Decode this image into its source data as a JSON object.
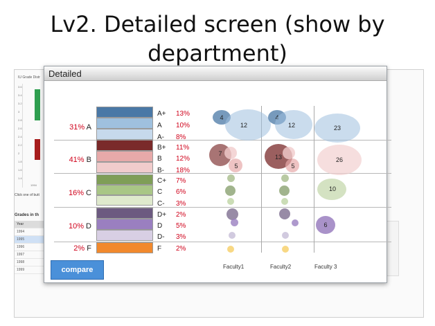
{
  "slide": {
    "title_line1": "Lv2. Detailed screen (show by",
    "title_line2": "department)"
  },
  "background": {
    "chart_title": "IU Grade Distr",
    "y_ticks": [
      "3.6",
      "3.4",
      "3.2",
      "3",
      "2.8",
      "2.6",
      "2.4",
      "2.2",
      "2",
      "1.8",
      "1.6",
      "1.4"
    ],
    "x_tick": "1994",
    "click_hint": "Click one of butt",
    "grades_title": "Grades in th",
    "table_header": "Year",
    "table_rows": [
      "1994",
      "1995",
      "1996",
      "1997",
      "1998",
      "1999"
    ]
  },
  "dialog": {
    "title": "Detailed",
    "compare_label": "compare",
    "groups": [
      {
        "pct": "31%",
        "letter": "A"
      },
      {
        "pct": "41%",
        "letter": "B"
      },
      {
        "pct": "16%",
        "letter": "C"
      },
      {
        "pct": "10%",
        "letter": "D"
      },
      {
        "pct": "2%",
        "letter": "F"
      }
    ],
    "grades": [
      {
        "label": "A+",
        "pct": "13%",
        "color": "#4a78a6"
      },
      {
        "label": "A",
        "pct": "10%",
        "color": "#9fc0de"
      },
      {
        "label": "A-",
        "pct": "8%",
        "color": "#c6d9ec"
      },
      {
        "label": "B+",
        "pct": "11%",
        "color": "#7a2a2a"
      },
      {
        "label": "B",
        "pct": "12%",
        "color": "#e7a9a9"
      },
      {
        "label": "B-",
        "pct": "18%",
        "color": "#f1cccc"
      },
      {
        "label": "C+",
        "pct": "7%",
        "color": "#7f9e57"
      },
      {
        "label": "C",
        "pct": "6%",
        "color": "#a9c686"
      },
      {
        "label": "C-",
        "pct": "3%",
        "color": "#dfe9cd"
      },
      {
        "label": "D+",
        "pct": "2%",
        "color": "#6c5a80"
      },
      {
        "label": "D",
        "pct": "5%",
        "color": "#9a7fc0"
      },
      {
        "label": "D-",
        "pct": "3%",
        "color": "#d8cfe4"
      },
      {
        "label": "F",
        "pct": "2%",
        "color": "#f1892d"
      }
    ],
    "faculties": [
      "Faculty1",
      "Faculty2",
      "Faculty 3"
    ],
    "bubble_labels": {
      "f1_aplus": "4",
      "f1_a": "12",
      "f2_aplus": "4",
      "f2_a": "12",
      "f3_a": "23",
      "f1_bplus": "7",
      "f1_b": "5",
      "f2_bplus": "13",
      "f2_b": "5",
      "f3_b": "26",
      "f3_c": "10",
      "f3_d": "6"
    }
  }
}
